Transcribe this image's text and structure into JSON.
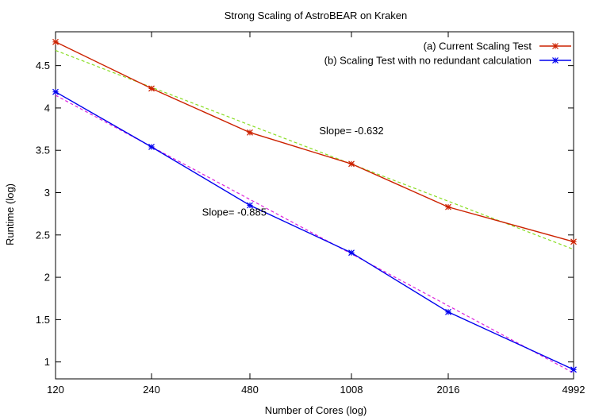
{
  "chart_data": {
    "type": "line",
    "title": "Strong Scaling of AstroBEAR on Kraken",
    "xlabel": "Number of Cores (log)",
    "ylabel": "Runtime (log)",
    "x_scale": "log",
    "x_ticks": [
      120,
      240,
      480,
      1008,
      2016,
      4992
    ],
    "x_tick_labels": [
      "120",
      "240",
      "480",
      "1008",
      "2016",
      "4992"
    ],
    "xlim": [
      120,
      4992
    ],
    "ylim": [
      0.8,
      4.9
    ],
    "y_ticks": [
      1,
      1.5,
      2,
      2.5,
      3,
      3.5,
      4,
      4.5
    ],
    "y_tick_labels": [
      "1",
      "1.5",
      "2",
      "2.5",
      "3",
      "3.5",
      "4",
      "4.5"
    ],
    "grid": false,
    "legend_position": "top-right",
    "series": [
      {
        "name": "(a) Current Scaling Test",
        "color": "#cc2200",
        "marker": "star",
        "x": [
          120,
          240,
          480,
          1008,
          2016,
          4992
        ],
        "y": [
          4.78,
          4.23,
          3.71,
          3.34,
          2.83,
          2.42
        ]
      },
      {
        "name": "(b) Scaling Test with no redundant calculation",
        "color": "#0000ee",
        "marker": "star",
        "x": [
          120,
          240,
          480,
          1008,
          2016,
          4992
        ],
        "y": [
          4.19,
          3.54,
          2.85,
          2.29,
          1.59,
          0.91
        ]
      }
    ],
    "fit_lines": [
      {
        "color": "#88dd22",
        "dash": true,
        "x": [
          120,
          4992
        ],
        "y": [
          4.68,
          2.33
        ]
      },
      {
        "color": "#dd22dd",
        "dash": true,
        "x": [
          120,
          4992
        ],
        "y": [
          4.15,
          0.87
        ]
      }
    ],
    "annotations": [
      {
        "text": "Slope= -0.632",
        "x": 1008,
        "y": 3.69
      },
      {
        "text": "Slope= -0.885",
        "x": 430,
        "y": 2.73
      }
    ]
  }
}
